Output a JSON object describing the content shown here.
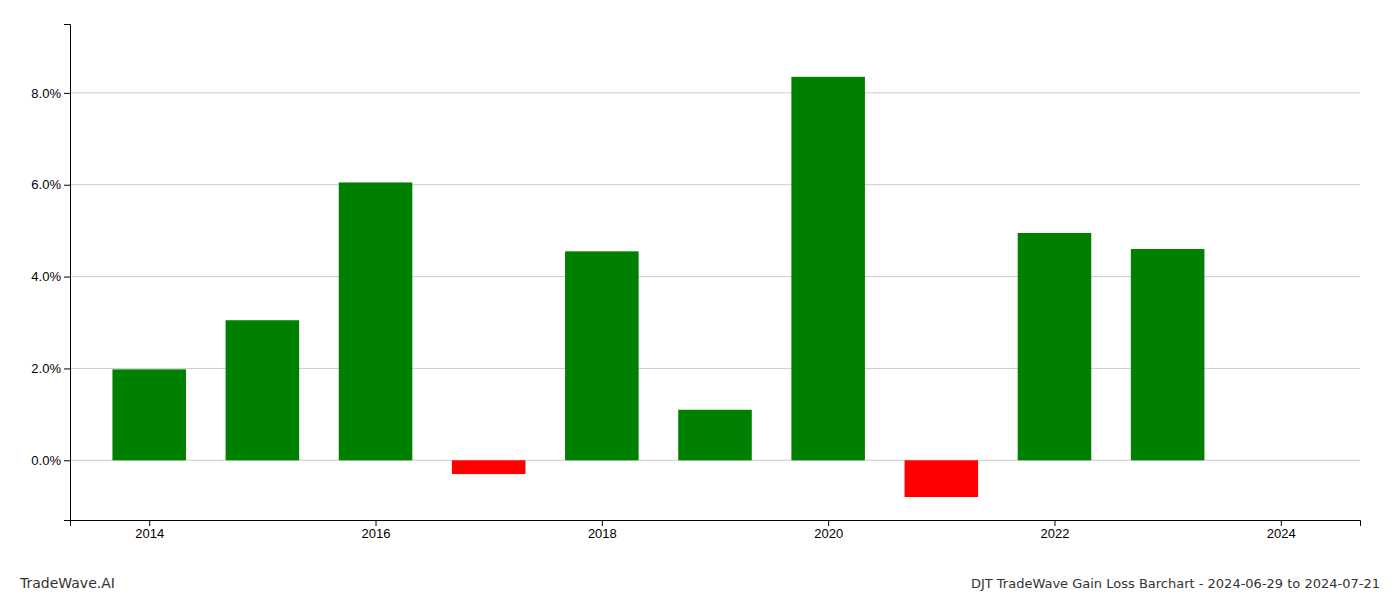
{
  "chart_data": {
    "type": "bar",
    "title": "DJT TradeWave Gain Loss Barchart - 2024-06-29 to 2024-07-21",
    "annotations": [
      "TradeWave.AI"
    ],
    "x": [
      2014,
      2015,
      2016,
      2017,
      2018,
      2019,
      2020,
      2021,
      2022,
      2023
    ],
    "values": [
      0.0198,
      0.0305,
      0.0605,
      -0.003,
      0.0455,
      0.011,
      0.0835,
      -0.008,
      0.0495,
      0.046
    ],
    "colors": [
      "#008000",
      "#008000",
      "#008000",
      "#ff0000",
      "#008000",
      "#008000",
      "#008000",
      "#ff0000",
      "#008000",
      "#008000"
    ],
    "xlim": [
      2013.3,
      2024.7
    ],
    "xticks": [
      2014,
      2016,
      2018,
      2020,
      2022,
      2024
    ],
    "ylim": [
      -0.013,
      0.095
    ],
    "yticks": [
      {
        "value": 0.0,
        "label": "0.0%"
      },
      {
        "value": 0.02,
        "label": "2.0%"
      },
      {
        "value": 0.04,
        "label": "4.0%"
      },
      {
        "value": 0.06,
        "label": "6.0%"
      },
      {
        "value": 0.08,
        "label": "8.0%"
      }
    ],
    "grid": true
  }
}
